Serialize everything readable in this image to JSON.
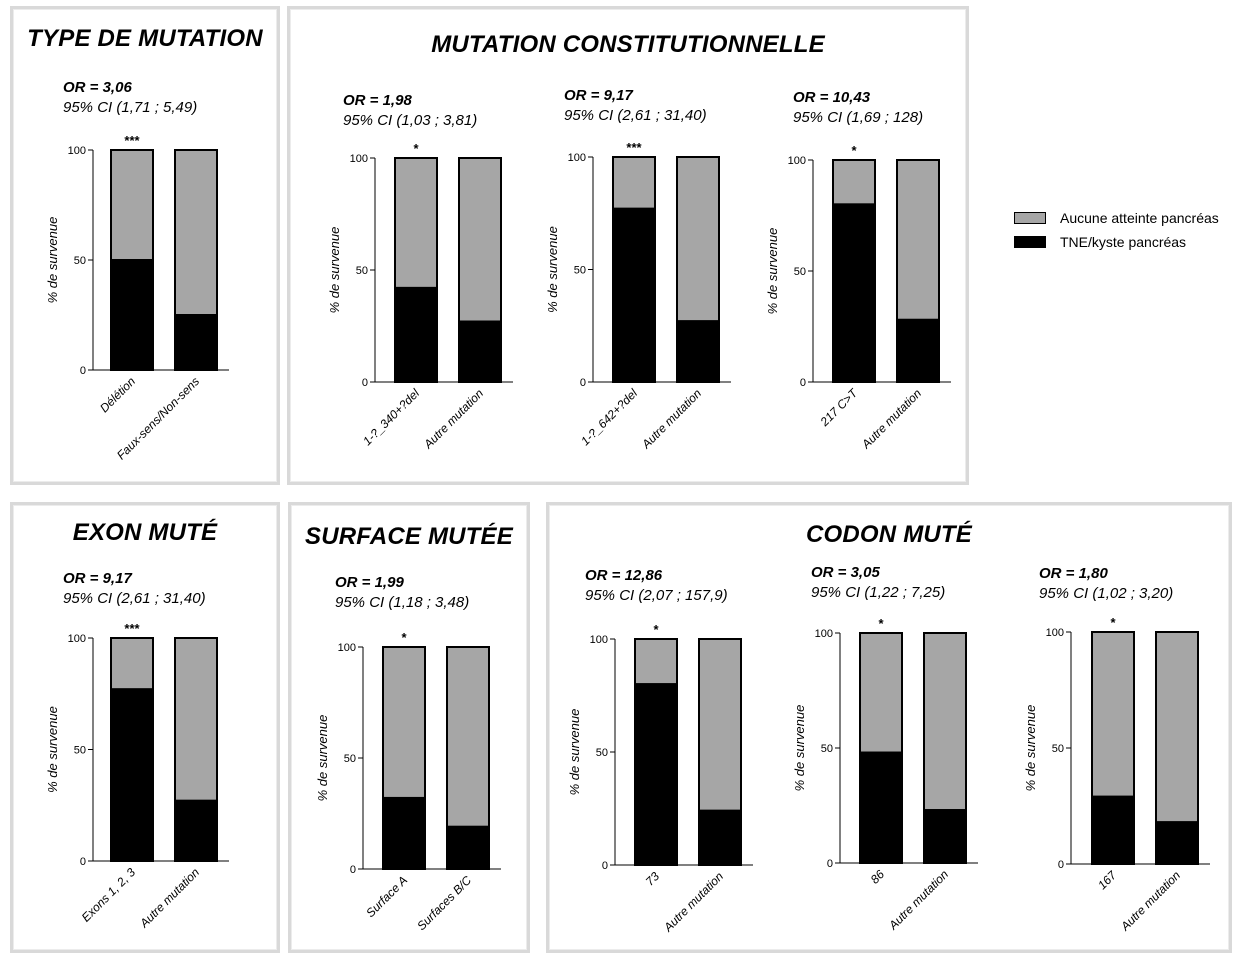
{
  "colors": {
    "affected": "#000000",
    "unaffected": "#a6a6a6",
    "panel_border": "#d9d9d9"
  },
  "panels": [
    {
      "id": "type",
      "title": "TYPE DE MUTATION"
    },
    {
      "id": "constit",
      "title": "MUTATION CONSTITUTIONNELLE"
    },
    {
      "id": "exon",
      "title": "EXON MUTÉ"
    },
    {
      "id": "surface",
      "title": "SURFACE MUTÉE"
    },
    {
      "id": "codon",
      "title": "CODON MUTÉ"
    }
  ],
  "legend": [
    {
      "label": "Aucune atteinte pancréas",
      "color": "#a6a6a6"
    },
    {
      "label": "TNE/kyste pancréas",
      "color": "#000000"
    }
  ],
  "chart_data": [
    {
      "type": "bar",
      "stacked": true,
      "or": "OR = 3,06",
      "ci": "95% CI (1,71 ; 5,49)",
      "significance": "***",
      "ylabel": "% de survenue",
      "ylim": [
        0,
        100
      ],
      "yticks": [
        "0",
        "50",
        "100"
      ],
      "categories": [
        "Délétion",
        "Faux-sens/Non-sens"
      ],
      "series": [
        {
          "name": "TNE/kyste pancréas",
          "values": [
            50,
            25
          ]
        },
        {
          "name": "Aucune atteinte pancréas",
          "values": [
            50,
            75
          ]
        }
      ]
    },
    {
      "type": "bar",
      "stacked": true,
      "or": "OR = 1,98",
      "ci": "95% CI (1,03 ; 3,81)",
      "significance": "*",
      "ylabel": "% de survenue",
      "ylim": [
        0,
        100
      ],
      "yticks": [
        "0",
        "50",
        "100"
      ],
      "categories": [
        "1-?_340+?del",
        "Autre mutation"
      ],
      "series": [
        {
          "name": "TNE/kyste pancréas",
          "values": [
            42,
            27
          ]
        },
        {
          "name": "Aucune atteinte pancréas",
          "values": [
            58,
            73
          ]
        }
      ]
    },
    {
      "type": "bar",
      "stacked": true,
      "or": "OR = 9,17",
      "ci": "95% CI (2,61 ; 31,40)",
      "significance": "***",
      "ylabel": "% de survenue",
      "ylim": [
        0,
        100
      ],
      "yticks": [
        "0",
        "50",
        "100"
      ],
      "categories": [
        "1-?_642+?del",
        "Autre mutation"
      ],
      "series": [
        {
          "name": "TNE/kyste pancréas",
          "values": [
            77,
            27
          ]
        },
        {
          "name": "Aucune atteinte pancréas",
          "values": [
            23,
            73
          ]
        }
      ]
    },
    {
      "type": "bar",
      "stacked": true,
      "or": "OR = 10,43",
      "ci": "95% CI (1,69 ; 128)",
      "significance": "*",
      "ylabel": "% de survenue",
      "ylim": [
        0,
        100
      ],
      "yticks": [
        "0",
        "50",
        "100"
      ],
      "categories": [
        "217 C>T",
        "Autre mutation"
      ],
      "series": [
        {
          "name": "TNE/kyste pancréas",
          "values": [
            80,
            28
          ]
        },
        {
          "name": "Aucune atteinte pancréas",
          "values": [
            20,
            72
          ]
        }
      ]
    },
    {
      "type": "bar",
      "stacked": true,
      "or": "OR = 9,17",
      "ci": "95% CI (2,61 ; 31,40)",
      "significance": "***",
      "ylabel": "% de survenue",
      "ylim": [
        0,
        100
      ],
      "yticks": [
        "0",
        "50",
        "100"
      ],
      "categories": [
        "Exons 1, 2, 3",
        "Autre mutation"
      ],
      "series": [
        {
          "name": "TNE/kyste pancréas",
          "values": [
            77,
            27
          ]
        },
        {
          "name": "Aucune atteinte pancréas",
          "values": [
            23,
            73
          ]
        }
      ]
    },
    {
      "type": "bar",
      "stacked": true,
      "or": "OR = 1,99",
      "ci": "95% CI (1,18 ; 3,48)",
      "significance": "*",
      "ylabel": "% de survenue",
      "ylim": [
        0,
        100
      ],
      "yticks": [
        "0",
        "50",
        "100"
      ],
      "categories": [
        "Surface A",
        "Surfaces B/C"
      ],
      "series": [
        {
          "name": "TNE/kyste pancréas",
          "values": [
            32,
            19
          ]
        },
        {
          "name": "Aucune atteinte pancréas",
          "values": [
            68,
            81
          ]
        }
      ]
    },
    {
      "type": "bar",
      "stacked": true,
      "or": "OR = 12,86",
      "ci": "95% CI (2,07 ; 157,9)",
      "significance": "*",
      "ylabel": "% de survenue",
      "ylim": [
        0,
        100
      ],
      "yticks": [
        "0",
        "50",
        "100"
      ],
      "categories": [
        "73",
        "Autre mutation"
      ],
      "series": [
        {
          "name": "TNE/kyste pancréas",
          "values": [
            80,
            24
          ]
        },
        {
          "name": "Aucune atteinte pancréas",
          "values": [
            20,
            76
          ]
        }
      ]
    },
    {
      "type": "bar",
      "stacked": true,
      "or": "OR = 3,05",
      "ci": "95% CI (1,22 ; 7,25)",
      "significance": "*",
      "ylabel": "% de survenue",
      "ylim": [
        0,
        100
      ],
      "yticks": [
        "0",
        "50",
        "100"
      ],
      "categories": [
        "86",
        "Autre mutation"
      ],
      "series": [
        {
          "name": "TNE/kyste pancréas",
          "values": [
            48,
            23
          ]
        },
        {
          "name": "Aucune atteinte pancréas",
          "values": [
            52,
            77
          ]
        }
      ]
    },
    {
      "type": "bar",
      "stacked": true,
      "or": "OR = 1,80",
      "ci": "95% CI (1,02 ; 3,20)",
      "significance": "*",
      "ylabel": "% de survenue",
      "ylim": [
        0,
        100
      ],
      "yticks": [
        "0",
        "50",
        "100"
      ],
      "categories": [
        "167",
        "Autre mutation"
      ],
      "series": [
        {
          "name": "TNE/kyste pancréas",
          "values": [
            29,
            18
          ]
        },
        {
          "name": "Aucune atteinte pancréas",
          "values": [
            71,
            82
          ]
        }
      ]
    }
  ]
}
